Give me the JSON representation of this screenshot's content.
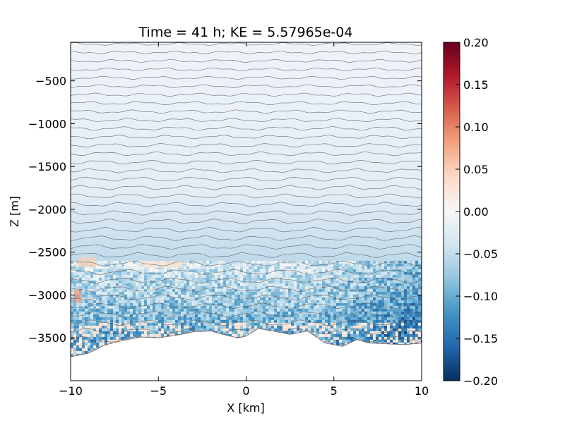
{
  "chart_data": {
    "type": "heatmap",
    "title": "Time = 41 h; KE = 5.57965e-04",
    "xlabel": "X [km]",
    "ylabel": "Z [m]",
    "xlim": [
      -10,
      10
    ],
    "ylim": [
      -4000,
      -50
    ],
    "x_ticks": [
      -10,
      -5,
      0,
      5,
      10
    ],
    "x_tick_labels": [
      "−10",
      "−5",
      "0",
      "5",
      "10"
    ],
    "y_ticks": [
      -500,
      -1000,
      -1500,
      -2000,
      -2500,
      -3000,
      -3500
    ],
    "y_tick_labels": [
      "−500",
      "−1000",
      "−1500",
      "−2000",
      "−2500",
      "−3000",
      "−3500"
    ],
    "colorbar": {
      "colormap": "RdBu_r",
      "range": [
        -0.2,
        0.2
      ],
      "ticks": [
        0.2,
        0.15,
        0.1,
        0.05,
        0.0,
        -0.05,
        -0.1,
        -0.15,
        -0.2
      ],
      "tick_labels": [
        "0.20",
        "0.15",
        "0.10",
        "0.05",
        "0.00",
        "−0.05",
        "−0.10",
        "−0.15",
        "−0.20"
      ],
      "stops": [
        "#053061",
        "#2166ac",
        "#4393c3",
        "#92c5de",
        "#d1e5f0",
        "#f7f7f7",
        "#fddbc7",
        "#f4a582",
        "#d6604d",
        "#b2182b",
        "#67001f"
      ]
    },
    "bottom_topography": {
      "x": [
        -10,
        -9,
        -8,
        -7,
        -6,
        -5,
        -4,
        -3,
        -2,
        -1.5,
        -0.5,
        0,
        0.7,
        1.5,
        2.5,
        3.5,
        4.5,
        5.5,
        6.3,
        7,
        8,
        9,
        10
      ],
      "z": [
        -3720,
        -3680,
        -3580,
        -3530,
        -3490,
        -3500,
        -3470,
        -3430,
        -3420,
        -3450,
        -3500,
        -3480,
        -3390,
        -3420,
        -3460,
        -3420,
        -3560,
        -3600,
        -3520,
        -3560,
        -3570,
        -3580,
        -3560
      ]
    },
    "isopycnal_contours": {
      "count": 36,
      "z_top": -70,
      "z_bottom": -3520
    },
    "grid": false
  }
}
